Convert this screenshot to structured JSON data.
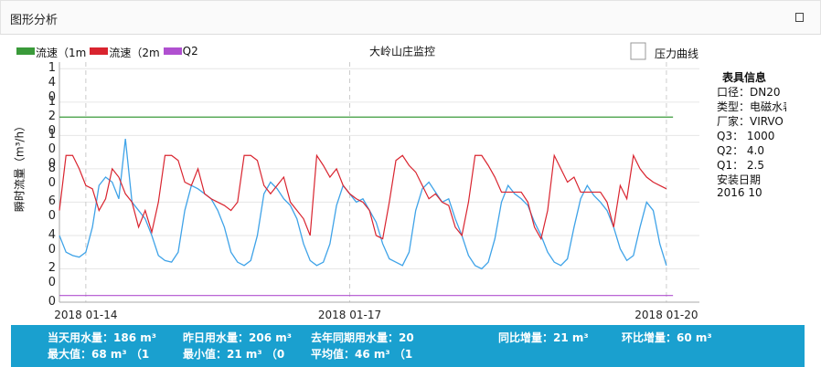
{
  "header": {
    "title": "图形分析"
  },
  "chart_data": {
    "type": "line",
    "title": "大岭山庄监控",
    "y_label": "瞬时流量（m³/h）",
    "categories": [
      null,
      null,
      null,
      null,
      "2018 01-14",
      null,
      null,
      null,
      null,
      null,
      null,
      null,
      null,
      null,
      null,
      null,
      null,
      null,
      null,
      null,
      null,
      null,
      null,
      null,
      null,
      null,
      null,
      null,
      null,
      null,
      null,
      null,
      null,
      null,
      null,
      null,
      null,
      null,
      null,
      null,
      null,
      null,
      null,
      null,
      "2018 01-17",
      null,
      null,
      null,
      null,
      null,
      null,
      null,
      null,
      null,
      null,
      null,
      null,
      null,
      null,
      null,
      null,
      null,
      null,
      null,
      null,
      null,
      null,
      null,
      null,
      null,
      null,
      null,
      null,
      null,
      null,
      null,
      null,
      null,
      null,
      null,
      null,
      null,
      null,
      null,
      null,
      null,
      null,
      null,
      null,
      null,
      null,
      null,
      "2018 01-20",
      null,
      null,
      null,
      null,
      null
    ],
    "series": [
      {
        "color": "#3fa3e8",
        "values": [
          40,
          30,
          28,
          27,
          30,
          45,
          70,
          75,
          72,
          62,
          98,
          60,
          55,
          50,
          40,
          28,
          25,
          24,
          30,
          55,
          70,
          68,
          65,
          62,
          55,
          45,
          30,
          24,
          22,
          25,
          40,
          65,
          72,
          68,
          62,
          58,
          50,
          35,
          25,
          22,
          24,
          35,
          58,
          70,
          65,
          60,
          62,
          55,
          48,
          35,
          26,
          24,
          22,
          30,
          55,
          68,
          72,
          66,
          60,
          62,
          50,
          40,
          28,
          22,
          20,
          24,
          38,
          60,
          70,
          65,
          62,
          58,
          48,
          40,
          30,
          24,
          22,
          26,
          45,
          62,
          70,
          64,
          60,
          55,
          45,
          32,
          25,
          28,
          45,
          60,
          55,
          35,
          22,
          null,
          null,
          null,
          null,
          null
        ]
      },
      {
        "name": "流速（2m",
        "color": "#d9242f",
        "values": [
          55,
          88,
          88,
          80,
          70,
          68,
          55,
          62,
          80,
          75,
          65,
          60,
          45,
          55,
          42,
          60,
          88,
          88,
          85,
          72,
          70,
          80,
          65,
          62,
          60,
          58,
          55,
          60,
          88,
          88,
          85,
          70,
          65,
          70,
          75,
          60,
          55,
          50,
          40,
          88,
          82,
          75,
          80,
          70,
          65,
          62,
          60,
          55,
          40,
          38,
          60,
          85,
          88,
          82,
          78,
          70,
          62,
          65,
          60,
          58,
          45,
          40,
          60,
          88,
          88,
          82,
          75,
          66,
          66,
          66,
          66,
          60,
          45,
          38,
          55,
          88,
          80,
          72,
          75,
          66,
          66,
          66,
          66,
          60,
          45,
          70,
          62,
          88,
          80,
          75,
          72,
          70,
          68,
          null,
          null,
          null,
          null,
          null
        ]
      },
      {
        "name": "流速（1m",
        "color": "#3a9a3a",
        "values": [
          111,
          111,
          111,
          111,
          111,
          111,
          111,
          111,
          111,
          111,
          111,
          111,
          111,
          111,
          111,
          111,
          111,
          111,
          111,
          111,
          111,
          111,
          111,
          111,
          111,
          111,
          111,
          111,
          111,
          111,
          111,
          111,
          111,
          111,
          111,
          111,
          111,
          111,
          111,
          111,
          111,
          111,
          111,
          111,
          111,
          111,
          111,
          111,
          111,
          111,
          111,
          111,
          111,
          111,
          111,
          111,
          111,
          111,
          111,
          111,
          111,
          111,
          111,
          111,
          111,
          111,
          111,
          111,
          111,
          111,
          111,
          111,
          111,
          111,
          111,
          111,
          111,
          111,
          111,
          111,
          111,
          111,
          111,
          111,
          111,
          111,
          111,
          111,
          111,
          111,
          111,
          111,
          111,
          111,
          null,
          null,
          null,
          null
        ]
      },
      {
        "name": "Q2",
        "color": "#b050d0",
        "values": [
          4,
          4,
          4,
          4,
          4,
          4,
          4,
          4,
          4,
          4,
          4,
          4,
          4,
          4,
          4,
          4,
          4,
          4,
          4,
          4,
          4,
          4,
          4,
          4,
          4,
          4,
          4,
          4,
          4,
          4,
          4,
          4,
          4,
          4,
          4,
          4,
          4,
          4,
          4,
          4,
          4,
          4,
          4,
          4,
          4,
          4,
          4,
          4,
          4,
          4,
          4,
          4,
          4,
          4,
          4,
          4,
          4,
          4,
          4,
          4,
          4,
          4,
          4,
          4,
          4,
          4,
          4,
          4,
          4,
          4,
          4,
          4,
          4,
          4,
          4,
          4,
          4,
          4,
          4,
          4,
          4,
          4,
          4,
          4,
          4,
          4,
          4,
          4,
          4,
          4,
          4,
          4,
          4,
          4,
          null,
          null,
          null,
          null
        ]
      }
    ],
    "legend_order": [
      2,
      1,
      3
    ],
    "ylim": [
      0,
      144
    ],
    "yticks": [
      0,
      20,
      40,
      60,
      80,
      100,
      120,
      140
    ],
    "grid": true
  },
  "side": {
    "checkbox": "压力曲线",
    "info_title": "表具信息",
    "info": [
      "口径：DN20",
      "类型：电磁水表",
      "厂家：VIRVO",
      "Q3：  1000",
      "Q2：  4.0",
      "Q1：  2.5",
      "安装日期",
      "2016 10"
    ]
  },
  "stats": {
    "row1": [
      "当天用水量：186 m³",
      "昨日用水量：206 m³",
      "去年同期用水量：20",
      "同比增量：21 m³",
      "环比增量：60 m³"
    ],
    "row2": [
      "最大值：68 m³   （1",
      "最小值：21 m³   （0",
      "平均值：46 m³   （1"
    ]
  }
}
